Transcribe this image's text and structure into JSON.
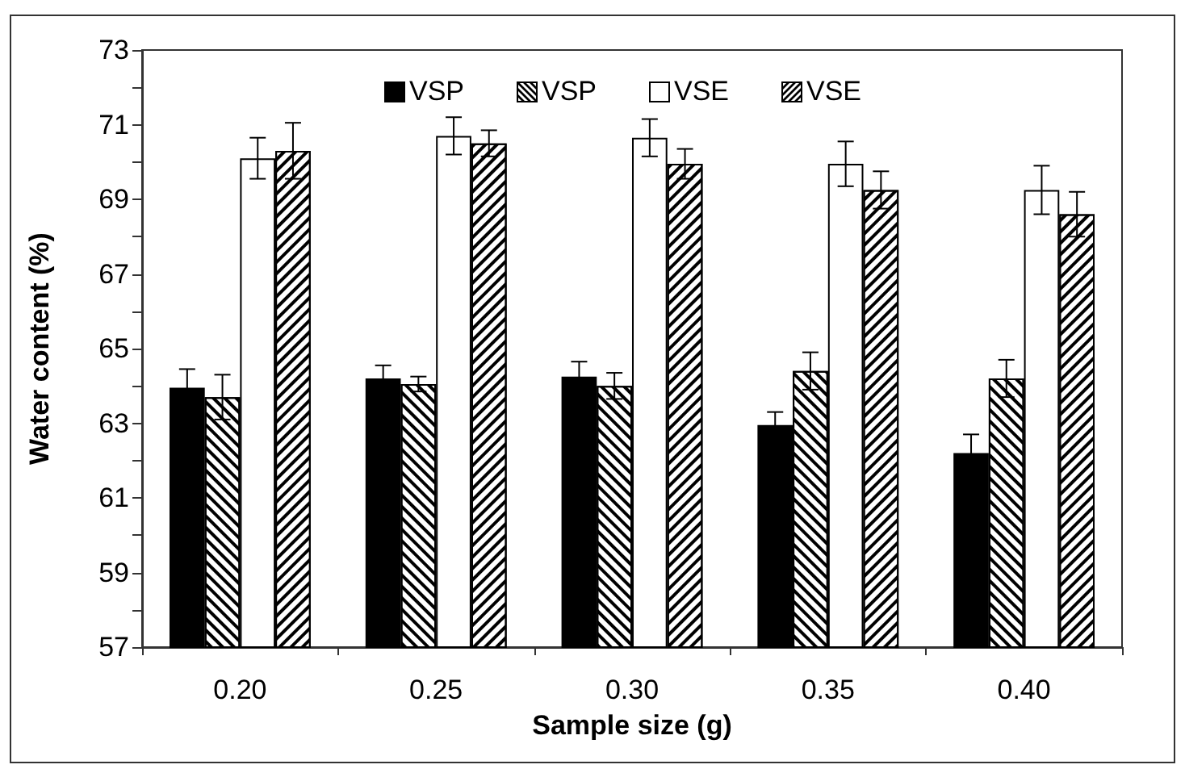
{
  "chart_data": {
    "type": "bar",
    "xlabel": "Sample size (g)",
    "ylabel": "Water content (%)",
    "categories": [
      "0.20",
      "0.25",
      "0.30",
      "0.35",
      "0.40"
    ],
    "series": [
      {
        "name": "VSP",
        "color": "#000000",
        "values": [
          63.95,
          64.2,
          64.25,
          62.95,
          62.2
        ],
        "errors": [
          0.5,
          0.35,
          0.4,
          0.35,
          0.5
        ]
      },
      {
        "name": "VSP",
        "color": "#ffffff",
        "values": [
          63.7,
          64.05,
          64.0,
          64.4,
          64.2
        ],
        "errors": [
          0.6,
          0.2,
          0.35,
          0.5,
          0.5
        ]
      },
      {
        "name": "VSE",
        "color": "#ffffff",
        "values": [
          70.1,
          70.7,
          70.65,
          69.95,
          69.25
        ],
        "errors": [
          0.55,
          0.5,
          0.5,
          0.6,
          0.65
        ]
      },
      {
        "name": "VSE",
        "color": "#ffffff",
        "values": [
          70.3,
          70.5,
          69.95,
          69.25,
          68.6
        ],
        "errors": [
          0.75,
          0.35,
          0.4,
          0.5,
          0.6
        ]
      }
    ],
    "ylim": [
      57,
      73
    ],
    "yticks": [
      57,
      {
        "value": 58,
        "label": null
      },
      59,
      {
        "value": 60,
        "label": null
      },
      61,
      {
        "value": 62,
        "label": null
      },
      63,
      {
        "value": 64,
        "label": null
      },
      65,
      {
        "value": 66,
        "label": null
      },
      67,
      {
        "value": 68,
        "label": null
      },
      69,
      {
        "value": 70,
        "label": null
      },
      71,
      {
        "value": 72,
        "label": null
      },
      73
    ],
    "grid": false,
    "legend": "top"
  }
}
